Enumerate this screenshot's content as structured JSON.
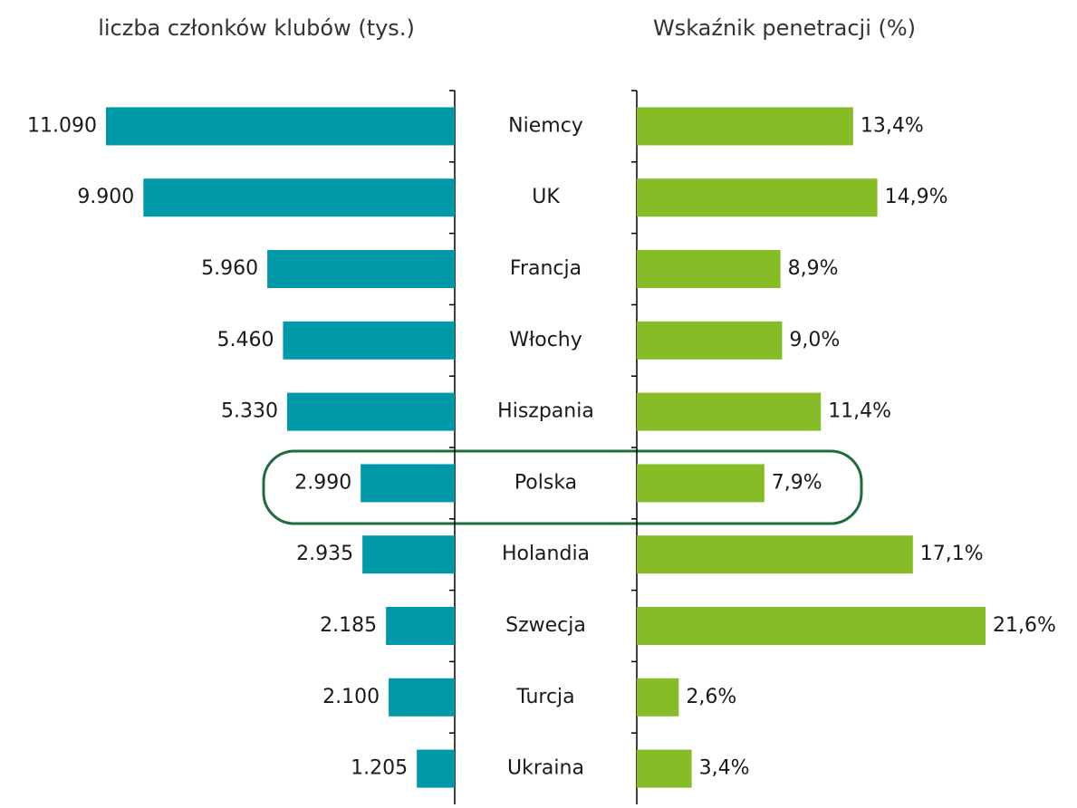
{
  "chart_data": {
    "type": "bar",
    "orientation": "horizontal",
    "categories": [
      "Niemcy",
      "UK",
      "Francja",
      "Włochy",
      "Hiszpania",
      "Polska",
      "Holandia",
      "Szwecja",
      "Turcja",
      "Ukraina"
    ],
    "series": [
      {
        "name": "liczba członków klubów (tys.)",
        "color": "#0099a8",
        "values": [
          11090,
          9900,
          5960,
          5460,
          5330,
          2990,
          2935,
          2185,
          2100,
          1205
        ],
        "value_labels": [
          "11.090",
          "9.900",
          "5.960",
          "5.460",
          "5.330",
          "2.990",
          "2.935",
          "2.185",
          "2.100",
          "1.205"
        ]
      },
      {
        "name": "Wskaźnik penetracji (%)",
        "color": "#86bc25",
        "values": [
          13.4,
          14.9,
          8.9,
          9.0,
          11.4,
          7.9,
          17.1,
          21.6,
          2.6,
          3.4
        ],
        "value_labels": [
          "13,4%",
          "14,9%",
          "8,9%",
          "9,0%",
          "11,4%",
          "7,9%",
          "17,1%",
          "21,6%",
          "2,6%",
          "3,4%"
        ]
      }
    ]
  }
}
